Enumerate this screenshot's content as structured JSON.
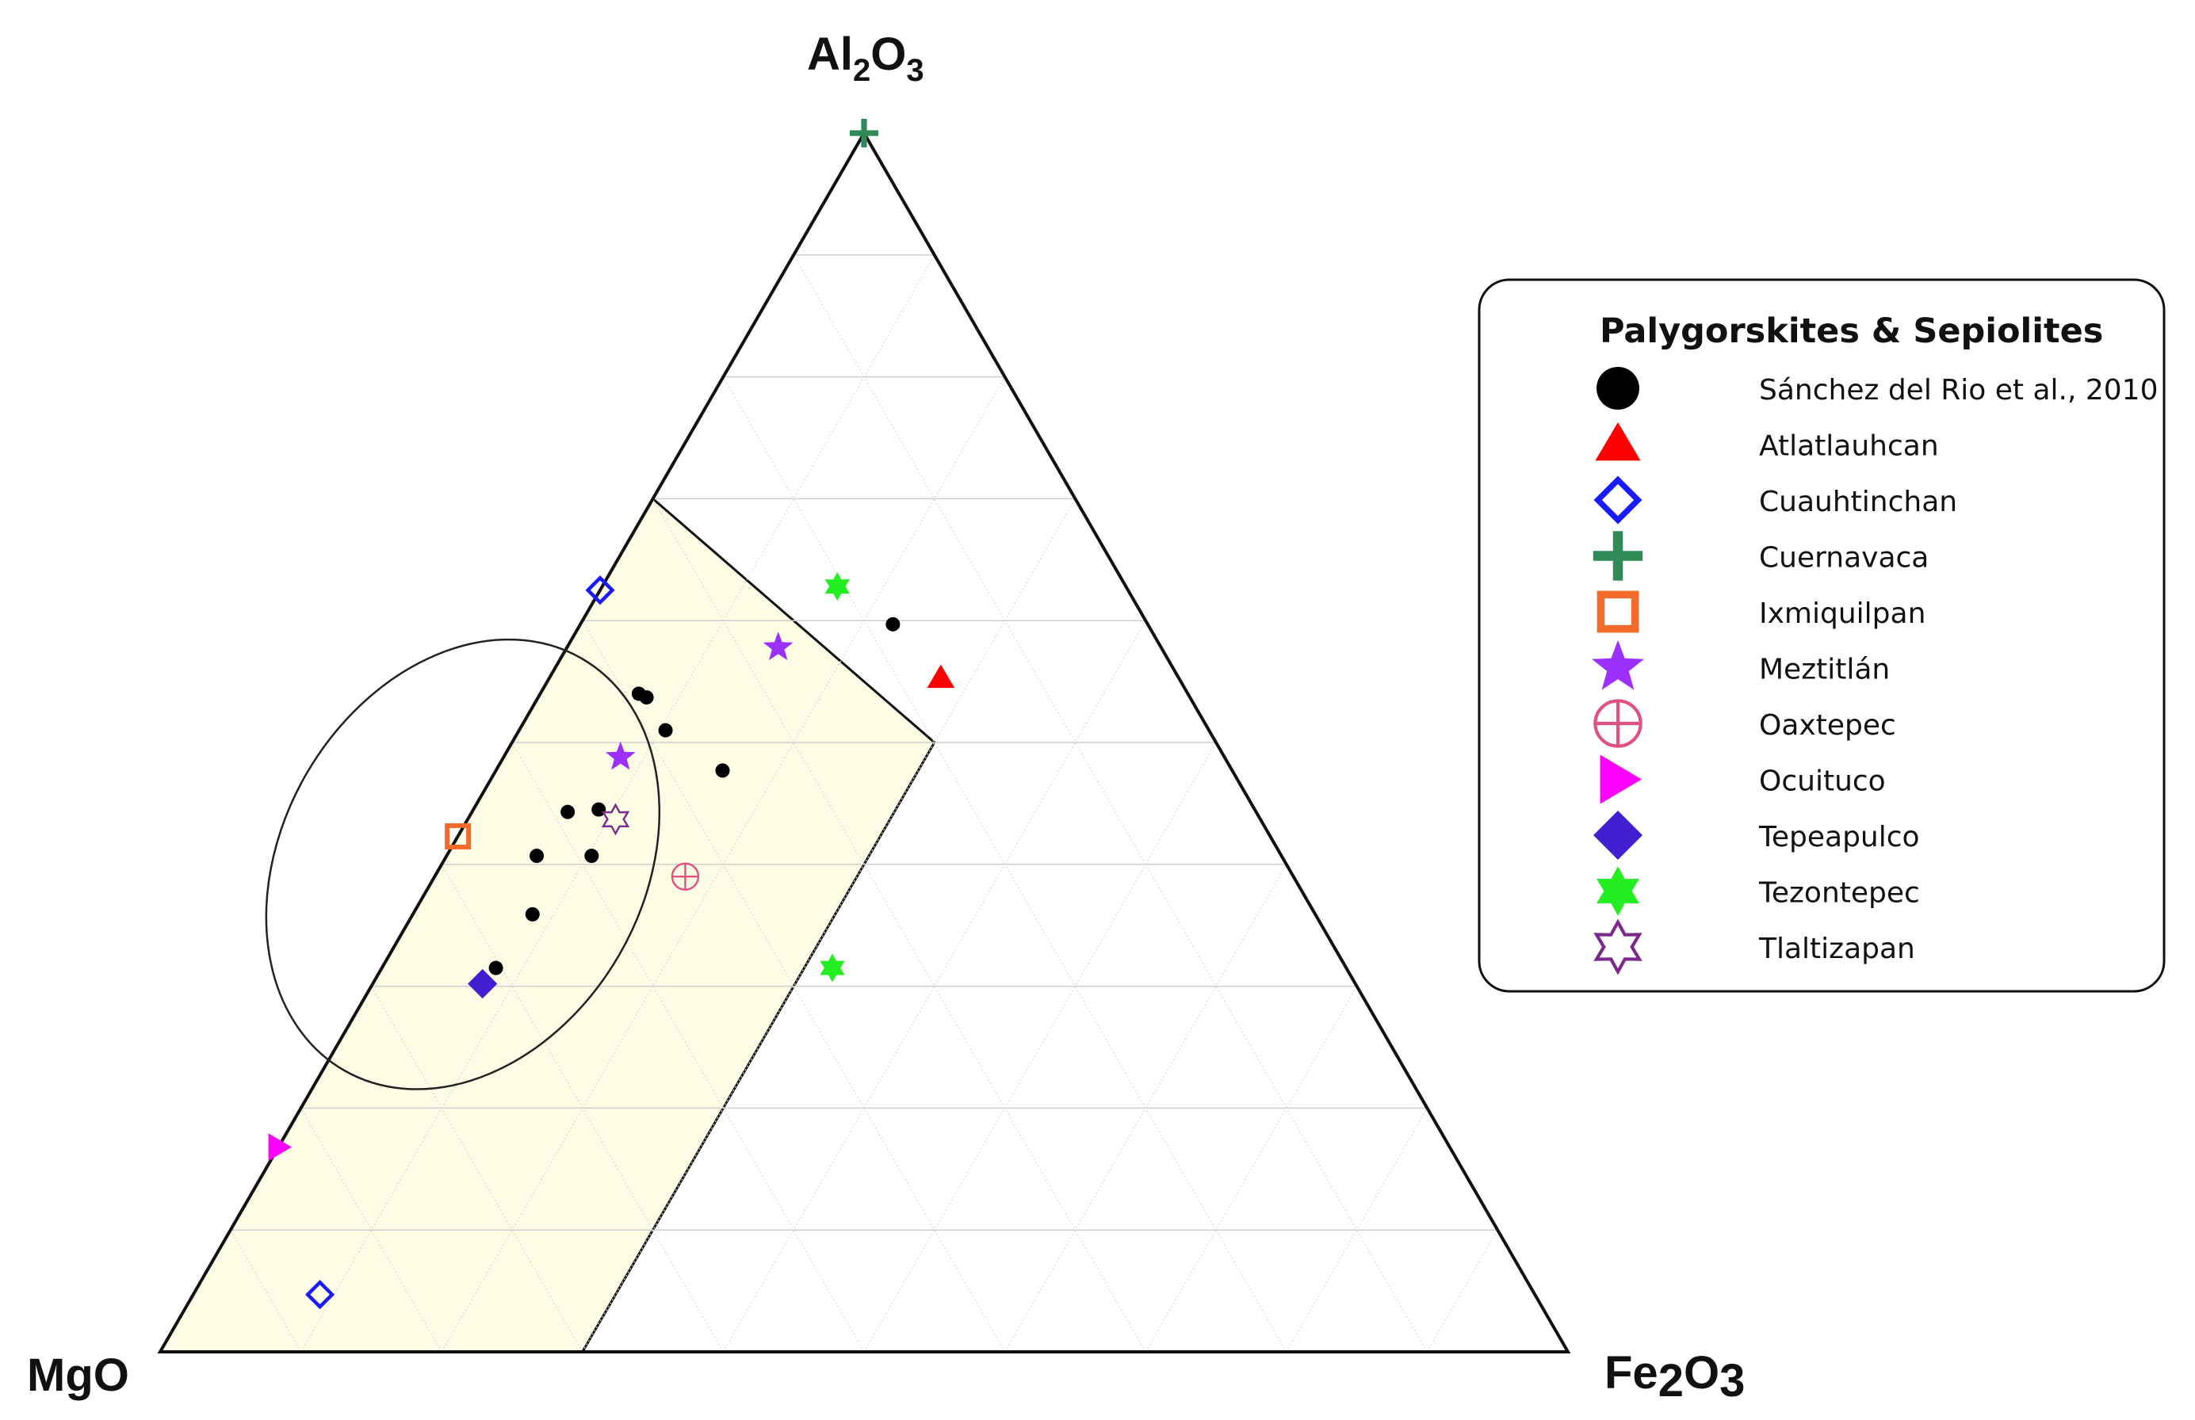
{
  "chart_data": {
    "type": "scatter",
    "subtype": "ternary",
    "axes": {
      "top": "Al2O3",
      "left": "MgO",
      "right": "Fe2O3"
    },
    "apex_labels": {
      "top_main": "Al",
      "top_sub1": "2",
      "top_mid": "O",
      "top_sub2": "3",
      "left": "MgO",
      "right_main": "Fe",
      "right_sub1": "2",
      "right_mid": "O",
      "right_sub2": "3"
    },
    "grid": true,
    "grid_step": 0.1,
    "legend_position": "right",
    "legend_title": "Palygorskites & Sepiolites",
    "shaded_region": {
      "fill": "#fdfde6",
      "vertices": [
        {
          "MgO": 1.0,
          "Al2O3": 0.0,
          "Fe2O3": 0.0
        },
        {
          "MgO": 0.7,
          "Al2O3": 0.0,
          "Fe2O3": 0.3
        },
        {
          "MgO": 0.2,
          "Al2O3": 0.5,
          "Fe2O3": 0.3
        },
        {
          "MgO": 0.3,
          "Al2O3": 0.7,
          "Fe2O3": 0.0
        }
      ]
    },
    "ellipse": {
      "center": {
        "MgO": 0.585,
        "Al2O3": 0.4,
        "Fe2O3": 0.015
      }
    },
    "series": [
      {
        "name": "Sánchez del Rio et al., 2010",
        "marker": "circle",
        "color": "#000000",
        "points": [
          {
            "Al2O3": 0.54,
            "Fe2O3": 0.07,
            "MgO": 0.39
          },
          {
            "Al2O3": 0.537,
            "Fe2O3": 0.077,
            "MgO": 0.386
          },
          {
            "Al2O3": 0.51,
            "Fe2O3": 0.104,
            "MgO": 0.386
          },
          {
            "Al2O3": 0.477,
            "Fe2O3": 0.161,
            "MgO": 0.362
          },
          {
            "Al2O3": 0.443,
            "Fe2O3": 0.068,
            "MgO": 0.489
          },
          {
            "Al2O3": 0.445,
            "Fe2O3": 0.089,
            "MgO": 0.466
          },
          {
            "Al2O3": 0.407,
            "Fe2O3": 0.103,
            "MgO": 0.49
          },
          {
            "Al2O3": 0.407,
            "Fe2O3": 0.064,
            "MgO": 0.529
          },
          {
            "Al2O3": 0.359,
            "Fe2O3": 0.085,
            "MgO": 0.556
          },
          {
            "Al2O3": 0.315,
            "Fe2O3": 0.081,
            "MgO": 0.604
          },
          {
            "Al2O3": 0.597,
            "Fe2O3": 0.222,
            "MgO": 0.181
          }
        ]
      },
      {
        "name": "Atlatlauhcan",
        "marker": "triangle",
        "color": "#ff0000",
        "points": [
          {
            "Al2O3": 0.553,
            "Fe2O3": 0.278,
            "MgO": 0.169
          }
        ]
      },
      {
        "name": "Cuauhtinchan",
        "marker": "diamond-open",
        "color": "#1a1aff",
        "points": [
          {
            "Al2O3": 0.625,
            "Fe2O3": 0.0,
            "MgO": 0.375
          },
          {
            "Al2O3": 0.047,
            "Fe2O3": 0.09,
            "MgO": 0.863
          }
        ]
      },
      {
        "name": "Cuernavaca",
        "marker": "plus",
        "color": "#2e8b57",
        "points": [
          {
            "Al2O3": 1.0,
            "Fe2O3": 0.0,
            "MgO": 0.0
          }
        ]
      },
      {
        "name": "Ixmiquilpan",
        "marker": "square-open",
        "color": "#f26b2a",
        "points": [
          {
            "Al2O3": 0.423,
            "Fe2O3": 0.0,
            "MgO": 0.577
          }
        ]
      },
      {
        "name": "Meztitlán",
        "marker": "star",
        "color": "#9b30ff",
        "points": [
          {
            "Al2O3": 0.578,
            "Fe2O3": 0.15,
            "MgO": 0.272
          },
          {
            "Al2O3": 0.488,
            "Fe2O3": 0.083,
            "MgO": 0.429
          }
        ]
      },
      {
        "name": "Oaxtepec",
        "marker": "circle-cross",
        "color": "#e05080",
        "points": [
          {
            "Al2O3": 0.39,
            "Fe2O3": 0.178,
            "MgO": 0.432
          }
        ]
      },
      {
        "name": "Ocuituco",
        "marker": "triangle-right",
        "color": "#ff00ff",
        "points": [
          {
            "Al2O3": 0.168,
            "Fe2O3": 0.0,
            "MgO": 0.832
          }
        ]
      },
      {
        "name": "Tepeapulco",
        "marker": "diamond",
        "color": "#3f1fcf",
        "points": [
          {
            "Al2O3": 0.302,
            "Fe2O3": 0.078,
            "MgO": 0.62
          }
        ]
      },
      {
        "name": "Tezontepec",
        "marker": "star6",
        "color": "#22ee22",
        "points": [
          {
            "Al2O3": 0.628,
            "Fe2O3": 0.167,
            "MgO": 0.205
          },
          {
            "Al2O3": 0.315,
            "Fe2O3": 0.32,
            "MgO": 0.365
          }
        ]
      },
      {
        "name": "Tlaltizapan",
        "marker": "star6-open",
        "color": "#7a2a8a",
        "points": [
          {
            "Al2O3": 0.437,
            "Fe2O3": 0.105,
            "MgO": 0.458
          }
        ]
      }
    ]
  }
}
